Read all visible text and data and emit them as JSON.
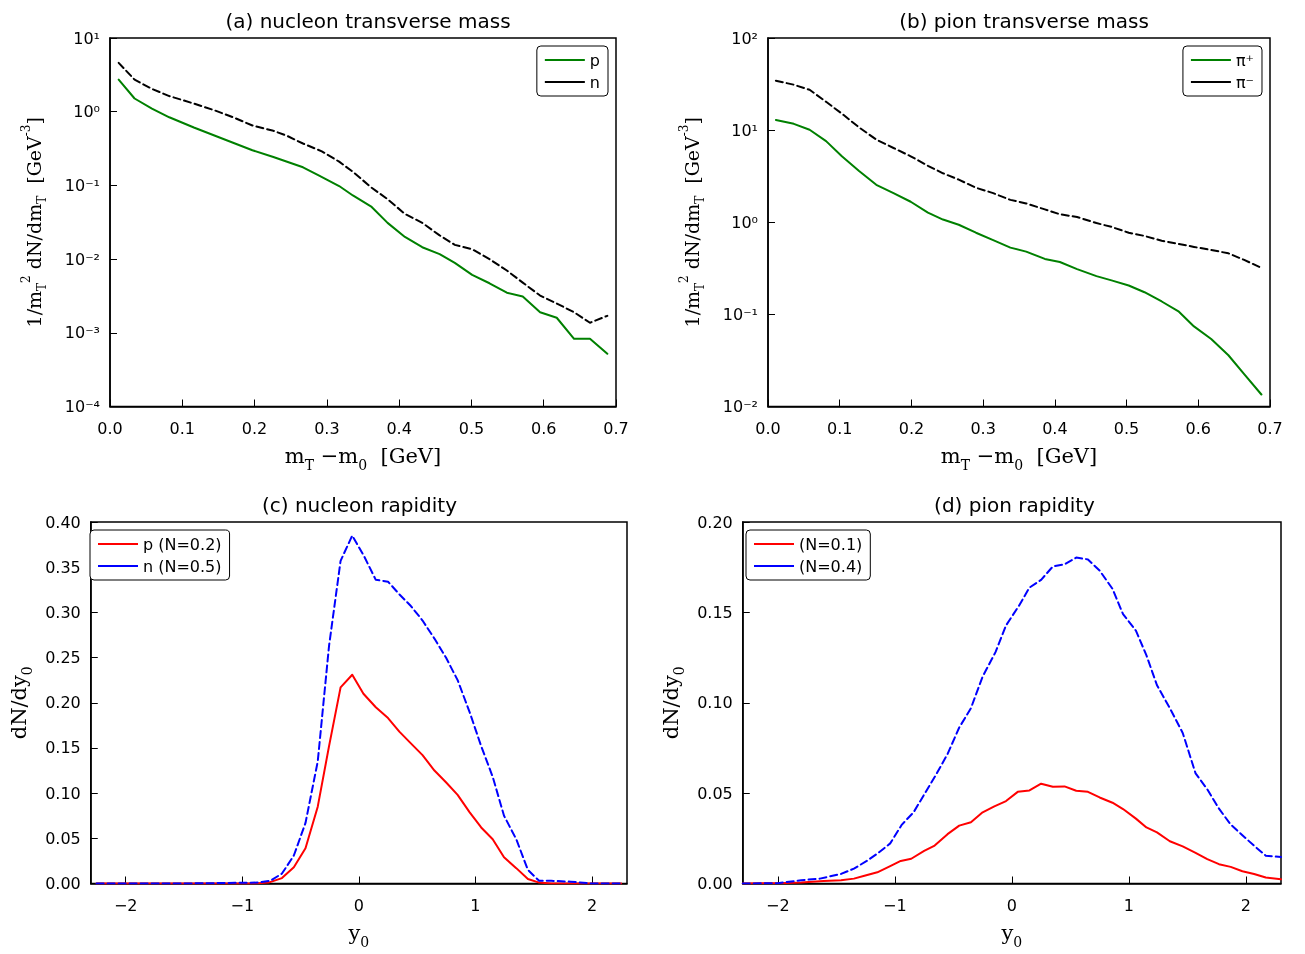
{
  "chart_data": [
    {
      "type": "line",
      "title": "(a) nucleon transverse mass",
      "xlabel": "m$_{T}$ −m$_{0}$  [GeV]",
      "ylabel": "1/m$_{T}$$^{2}$ dN/dm$_{T}$  [GeV$^{-3}$]",
      "log": "y",
      "legend": "top right",
      "xlim": [
        0,
        0.7
      ],
      "xticks": [
        {
          "value": 0,
          "label": "0.0"
        },
        0.1,
        0.2,
        0.3,
        0.4,
        0.5,
        0.6,
        0.7
      ],
      "ylim": [
        0.0001,
        10
      ],
      "yticks": [
        {
          "value": 0.0001,
          "label": "10⁻⁴"
        },
        {
          "value": 0.001,
          "label": "10⁻³"
        },
        {
          "value": 0.01,
          "label": "10⁻²"
        },
        {
          "value": 0.1,
          "label": "10⁻¹"
        },
        {
          "value": 1,
          "label": "10⁰"
        },
        {
          "value": 10,
          "label": "10¹"
        }
      ],
      "series": [
        {
          "name": "p",
          "color": "#008000",
          "line_style": "solid",
          "x": [
            0.012,
            0.034,
            0.058,
            0.082,
            0.116,
            0.164,
            0.197,
            0.226,
            0.267,
            0.288,
            0.317,
            0.336,
            0.362,
            0.384,
            0.408,
            0.432,
            0.456,
            0.477,
            0.501,
            0.525,
            0.549,
            0.571,
            0.595,
            0.618,
            0.642,
            0.664,
            0.688
          ],
          "values": [
            2.72,
            1.51,
            1.1,
            0.84,
            0.61,
            0.4,
            0.3,
            0.243,
            0.176,
            0.138,
            0.098,
            0.073,
            0.051,
            0.031,
            0.02,
            0.0145,
            0.0117,
            0.0089,
            0.0061,
            0.0047,
            0.0035,
            0.0031,
            0.0019,
            0.0016,
            0.00083,
            0.00083,
            0.00052
          ]
        },
        {
          "name": "n",
          "color": "#000000",
          "line_style": "dashed",
          "x": [
            0.012,
            0.034,
            0.058,
            0.082,
            0.116,
            0.145,
            0.173,
            0.197,
            0.226,
            0.245,
            0.267,
            0.293,
            0.317,
            0.336,
            0.362,
            0.384,
            0.408,
            0.432,
            0.456,
            0.477,
            0.501,
            0.525,
            0.549,
            0.571,
            0.595,
            0.618,
            0.642,
            0.664,
            0.688
          ],
          "values": [
            4.6,
            2.72,
            2.04,
            1.63,
            1.29,
            1.04,
            0.82,
            0.65,
            0.55,
            0.47,
            0.37,
            0.29,
            0.21,
            0.153,
            0.093,
            0.065,
            0.041,
            0.031,
            0.021,
            0.0156,
            0.0136,
            0.01,
            0.007,
            0.0048,
            0.0032,
            0.0025,
            0.0019,
            0.00137,
            0.0017
          ]
        }
      ]
    },
    {
      "type": "line",
      "title": "(b) pion transverse mass",
      "xlabel": "m$_{T}$ −m$_{0}$  [GeV]",
      "ylabel": "1/m$_{T}$$^{2}$ dN/dm$_{T}$  [GeV$^{-3}$]",
      "log": "y",
      "legend": "top right",
      "xlim": [
        0,
        0.7
      ],
      "xticks": [
        {
          "value": 0,
          "label": "0.0"
        },
        0.1,
        0.2,
        0.3,
        0.4,
        0.5,
        0.6,
        0.7
      ],
      "ylim": [
        0.01,
        100
      ],
      "yticks": [
        {
          "value": 0.01,
          "label": "10⁻²"
        },
        {
          "value": 0.1,
          "label": "10⁻¹"
        },
        {
          "value": 1,
          "label": "10⁰"
        },
        {
          "value": 10,
          "label": "10¹"
        },
        {
          "value": 100,
          "label": "10²"
        }
      ],
      "series": [
        {
          "name": "π⁺",
          "color": "#008000",
          "line_style": "solid",
          "x": [
            0.011,
            0.036,
            0.058,
            0.081,
            0.103,
            0.127,
            0.151,
            0.175,
            0.199,
            0.223,
            0.244,
            0.266,
            0.29,
            0.314,
            0.338,
            0.36,
            0.386,
            0.407,
            0.431,
            0.458,
            0.479,
            0.503,
            0.525,
            0.549,
            0.573,
            0.594,
            0.618,
            0.642,
            0.664,
            0.688
          ],
          "values": [
            12.9,
            11.7,
            10.1,
            7.6,
            5.2,
            3.6,
            2.55,
            2.07,
            1.67,
            1.27,
            1.07,
            0.94,
            0.77,
            0.64,
            0.53,
            0.48,
            0.4,
            0.37,
            0.31,
            0.26,
            0.234,
            0.206,
            0.174,
            0.138,
            0.107,
            0.074,
            0.054,
            0.036,
            0.0225,
            0.0135
          ]
        },
        {
          "name": "π⁻",
          "color": "#000000",
          "line_style": "dashed",
          "x": [
            0.011,
            0.036,
            0.058,
            0.081,
            0.103,
            0.127,
            0.151,
            0.175,
            0.199,
            0.223,
            0.244,
            0.266,
            0.29,
            0.314,
            0.338,
            0.36,
            0.386,
            0.407,
            0.431,
            0.458,
            0.479,
            0.503,
            0.525,
            0.549,
            0.573,
            0.594,
            0.618,
            0.642,
            0.664,
            0.688
          ],
          "values": [
            34.4,
            31.1,
            27.4,
            20.3,
            15.1,
            10.7,
            7.9,
            6.4,
            5.2,
            4.1,
            3.4,
            2.9,
            2.37,
            2.07,
            1.75,
            1.6,
            1.38,
            1.22,
            1.14,
            0.98,
            0.89,
            0.77,
            0.71,
            0.63,
            0.58,
            0.54,
            0.5,
            0.46,
            0.39,
            0.32
          ]
        }
      ]
    },
    {
      "type": "line",
      "title": "(c) nucleon rapidity",
      "xlabel": "y$_{0}$",
      "ylabel": "dN/dy$_{0}$",
      "legend": "top left",
      "xlim": [
        -2.3,
        2.3
      ],
      "xticks": [
        {
          "value": -2,
          "label": "−2"
        },
        {
          "value": -1,
          "label": "−1"
        },
        0,
        1,
        2
      ],
      "ylim": [
        0,
        0.4
      ],
      "yticks": [
        {
          "value": 0,
          "label": "0.00"
        },
        0.05,
        {
          "value": 0.1,
          "label": "0.10"
        },
        0.15,
        {
          "value": 0.2,
          "label": "0.20"
        },
        0.25,
        {
          "value": 0.3,
          "label": "0.30"
        },
        0.35,
        {
          "value": 0.4,
          "label": "0.40"
        }
      ],
      "series": [
        {
          "name": "p (N=0.2)",
          "color": "#ff0000",
          "line_style": "solid",
          "x": [
            -2.25,
            -1.5,
            -0.9,
            -0.775,
            -0.66,
            -0.558,
            -0.458,
            -0.353,
            -0.256,
            -0.157,
            -0.057,
            0.039,
            0.145,
            0.25,
            0.347,
            0.446,
            0.546,
            0.648,
            0.747,
            0.847,
            0.949,
            1.049,
            1.148,
            1.245,
            1.35,
            1.45,
            1.546,
            1.65,
            2.25
          ],
          "values": [
            0,
            0,
            0,
            0.001,
            0.006,
            0.018,
            0.039,
            0.085,
            0.152,
            0.217,
            0.231,
            0.21,
            0.195,
            0.183,
            0.168,
            0.155,
            0.142,
            0.125,
            0.112,
            0.098,
            0.079,
            0.062,
            0.049,
            0.029,
            0.017,
            0.005,
            0.001,
            0,
            0
          ]
        },
        {
          "name": "n (N=0.5)",
          "color": "#0000ff",
          "line_style": "dashed",
          "x": [
            -2.25,
            -1.5,
            -0.865,
            -0.759,
            -0.66,
            -0.558,
            -0.458,
            -0.353,
            -0.256,
            -0.157,
            -0.057,
            0.045,
            0.145,
            0.25,
            0.347,
            0.446,
            0.546,
            0.648,
            0.747,
            0.847,
            0.949,
            1.049,
            1.148,
            1.245,
            1.35,
            1.45,
            1.546,
            1.65,
            1.817,
            1.998,
            2.25
          ],
          "values": [
            0,
            0,
            0.001,
            0.003,
            0.011,
            0.031,
            0.067,
            0.135,
            0.263,
            0.357,
            0.385,
            0.362,
            0.336,
            0.334,
            0.32,
            0.307,
            0.291,
            0.271,
            0.25,
            0.225,
            0.19,
            0.152,
            0.118,
            0.075,
            0.049,
            0.015,
            0.003,
            0.003,
            0.002,
            0,
            0
          ]
        }
      ]
    },
    {
      "type": "line",
      "title": "(d) pion rapidity",
      "xlabel": "y$_{0}$",
      "ylabel": "dN/dy$_{0}$",
      "legend": "top left",
      "xlim": [
        -2.3,
        2.3
      ],
      "xticks": [
        {
          "value": -2,
          "label": "−2"
        },
        {
          "value": -1,
          "label": "−1"
        },
        0,
        1,
        2
      ],
      "ylim": [
        0,
        0.2
      ],
      "yticks": [
        {
          "value": 0,
          "label": "0.00"
        },
        0.05,
        {
          "value": 0.1,
          "label": "0.10"
        },
        0.15,
        {
          "value": 0.2,
          "label": "0.20"
        }
      ],
      "series": [
        {
          "name": "(N=0.1)",
          "color": "#ff0000",
          "line_style": "solid",
          "x": [
            -2.3,
            -2.0,
            -1.8,
            -1.61,
            -1.46,
            -1.35,
            -1.26,
            -1.15,
            -1.04,
            -0.95,
            -0.86,
            -0.75,
            -0.66,
            -0.55,
            -0.45,
            -0.35,
            -0.25,
            -0.15,
            -0.05,
            0.05,
            0.15,
            0.25,
            0.35,
            0.45,
            0.55,
            0.65,
            0.75,
            0.86,
            0.95,
            1.06,
            1.15,
            1.24,
            1.35,
            1.46,
            1.57,
            1.67,
            1.77,
            1.87,
            1.97,
            2.07,
            2.17,
            2.3
          ],
          "values": [
            0,
            0.0002,
            0.0006,
            0.0014,
            0.0018,
            0.0027,
            0.0043,
            0.0062,
            0.0096,
            0.0125,
            0.0137,
            0.018,
            0.021,
            0.0273,
            0.032,
            0.0339,
            0.0394,
            0.0427,
            0.0456,
            0.0507,
            0.0515,
            0.0552,
            0.0535,
            0.0537,
            0.0513,
            0.0507,
            0.0476,
            0.0447,
            0.0412,
            0.0359,
            0.031,
            0.0283,
            0.0234,
            0.0205,
            0.017,
            0.0135,
            0.0107,
            0.0092,
            0.0068,
            0.0053,
            0.0033,
            0.0023
          ]
        },
        {
          "name": "(N=0.4)",
          "color": "#0000ff",
          "line_style": "dashed",
          "x": [
            -2.3,
            -2.0,
            -1.8,
            -1.64,
            -1.46,
            -1.35,
            -1.24,
            -1.14,
            -1.04,
            -0.94,
            -0.84,
            -0.75,
            -0.65,
            -0.55,
            -0.45,
            -0.35,
            -0.25,
            -0.14,
            -0.05,
            0.06,
            0.15,
            0.25,
            0.35,
            0.45,
            0.55,
            0.65,
            0.75,
            0.86,
            0.95,
            1.06,
            1.15,
            1.24,
            1.35,
            1.46,
            1.57,
            1.67,
            1.77,
            1.87,
            1.97,
            2.07,
            2.17,
            2.3
          ],
          "values": [
            0,
            0.0002,
            0.0018,
            0.0027,
            0.0053,
            0.0082,
            0.0125,
            0.017,
            0.0222,
            0.0326,
            0.0394,
            0.0492,
            0.06,
            0.0716,
            0.0863,
            0.097,
            0.1145,
            0.128,
            0.1428,
            0.1536,
            0.1637,
            0.168,
            0.1754,
            0.1766,
            0.1803,
            0.1793,
            0.1731,
            0.163,
            0.149,
            0.1399,
            0.1262,
            0.1097,
            0.097,
            0.0833,
            0.0609,
            0.0521,
            0.0414,
            0.0326,
            0.0267,
            0.0209,
            0.0154,
            0.0146
          ]
        }
      ]
    }
  ]
}
